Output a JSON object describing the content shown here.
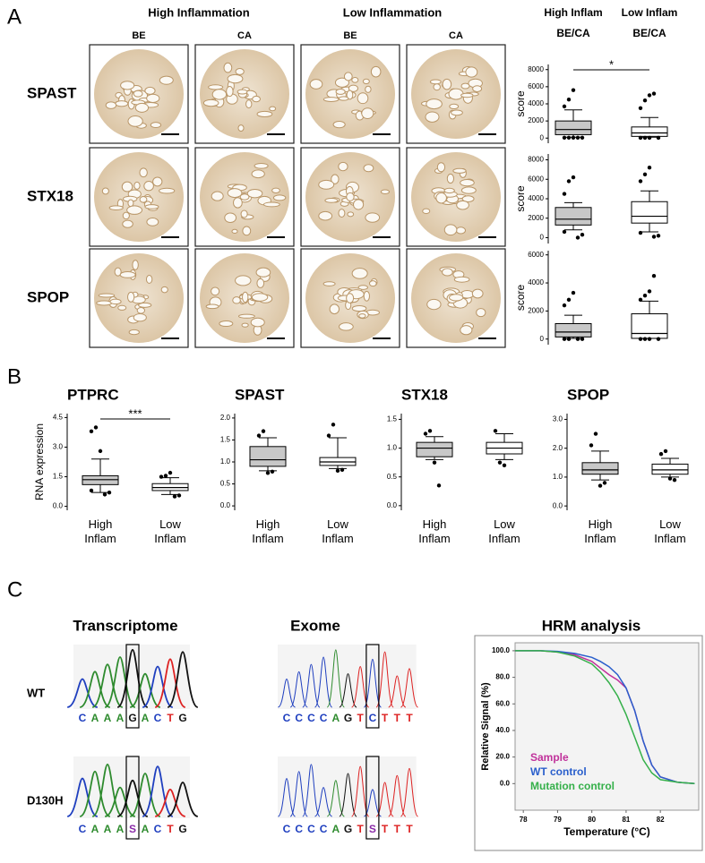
{
  "figure": {
    "panel_labels": [
      "A",
      "B",
      "C"
    ],
    "panel_a": {
      "group_headers": [
        "High Inflammation",
        "Low Inflammation"
      ],
      "column_headers": [
        "BE",
        "CA",
        "BE",
        "CA"
      ],
      "row_labels": [
        "SPAST",
        "STX18",
        "SPOP"
      ],
      "box_group_headers": [
        "High Inflam",
        "Low Inflam"
      ],
      "box_subheaders": [
        "BE/CA",
        "BE/CA"
      ]
    },
    "panel_c": {
      "titles": [
        "Transcriptome",
        "Exome"
      ],
      "row_labels": [
        "WT",
        "D130H"
      ],
      "transcriptome_sequences": [
        [
          "C",
          "A",
          "A",
          "A",
          "G",
          "A",
          "C",
          "T",
          "G"
        ],
        [
          "C",
          "A",
          "A",
          "A",
          "S",
          "A",
          "C",
          "T",
          "G"
        ]
      ],
      "exome_sequences": [
        [
          "C",
          "C",
          "C",
          "C",
          "A",
          "G",
          "T",
          "C",
          "T",
          "T",
          "T"
        ],
        [
          "C",
          "C",
          "C",
          "C",
          "A",
          "G",
          "T",
          "S",
          "T",
          "T",
          "T"
        ]
      ]
    }
  },
  "chart_data": [
    {
      "type": "box",
      "ylabel": "score",
      "ylim": [
        -600,
        8600
      ],
      "yticks": [
        0,
        2000,
        4000,
        6000,
        8000
      ],
      "colors": [
        "#c8c8c8",
        "#ffffff"
      ],
      "annotation": "*",
      "boxes": [
        {
          "whisker_low": 100,
          "q1": 400,
          "median": 1000,
          "q3": 2000,
          "whisker_high": 3300,
          "outliers": [
            3700,
            4500,
            5600,
            50,
            50,
            50,
            50,
            50
          ]
        },
        {
          "whisker_low": 100,
          "q1": 200,
          "median": 600,
          "q3": 1300,
          "whisker_high": 2400,
          "outliers": [
            3500,
            4400,
            5000,
            5200,
            30,
            30,
            30,
            30
          ]
        }
      ]
    },
    {
      "type": "box",
      "ylabel": "score",
      "ylim": [
        -600,
        8600
      ],
      "yticks": [
        0,
        2000,
        4000,
        6000,
        8000
      ],
      "colors": [
        "#c8c8c8",
        "#ffffff"
      ],
      "boxes": [
        {
          "whisker_low": 800,
          "q1": 1300,
          "median": 1900,
          "q3": 3100,
          "whisker_high": 3600,
          "outliers": [
            4500,
            5800,
            6200,
            0,
            300,
            600
          ]
        },
        {
          "whisker_low": 600,
          "q1": 1500,
          "median": 2200,
          "q3": 3700,
          "whisker_high": 4800,
          "outliers": [
            5800,
            6500,
            7200,
            100,
            200,
            500
          ]
        }
      ]
    },
    {
      "type": "box",
      "ylabel": "score",
      "ylim": [
        -400,
        6300
      ],
      "yticks": [
        0,
        2000,
        4000,
        6000
      ],
      "colors": [
        "#c8c8c8",
        "#ffffff"
      ],
      "boxes": [
        {
          "whisker_low": 50,
          "q1": 150,
          "median": 500,
          "q3": 1100,
          "whisker_high": 1700,
          "outliers": [
            2400,
            2800,
            3300,
            0,
            0,
            0,
            0
          ]
        },
        {
          "whisker_low": 50,
          "q1": 50,
          "median": 400,
          "q3": 1800,
          "whisker_high": 2700,
          "outliers": [
            2800,
            3100,
            3400,
            4500,
            0,
            0,
            0,
            0
          ]
        }
      ]
    },
    {
      "type": "box",
      "title": "PTPRC",
      "ylabel": "RNA expression",
      "categories": [
        "High Inflam",
        "Low Inflam"
      ],
      "ylim": [
        -0.2,
        4.7
      ],
      "yticks": [
        {
          "value": 0,
          "label": "0.0"
        },
        1.5,
        {
          "value": 3,
          "label": "3.0"
        },
        4.5
      ],
      "colors": [
        "#c8c8c8",
        "#ffffff"
      ],
      "annotation": "***",
      "boxes": [
        {
          "whisker_low": 0.7,
          "q1": 1.1,
          "median": 1.35,
          "q3": 1.55,
          "whisker_high": 2.4,
          "outliers": [
            3.8,
            4.0,
            2.8,
            0.6,
            0.7,
            0.8
          ]
        },
        {
          "whisker_low": 0.6,
          "q1": 0.8,
          "median": 0.95,
          "q3": 1.15,
          "whisker_high": 1.45,
          "outliers": [
            1.5,
            1.55,
            1.7,
            0.5,
            0.55
          ]
        }
      ]
    },
    {
      "type": "box",
      "title": "SPAST",
      "categories": [
        "High Inflam",
        "Low Inflam"
      ],
      "ylim": [
        -0.1,
        2.1
      ],
      "yticks": [
        {
          "value": 0,
          "label": "0.0"
        },
        0.5,
        {
          "value": 1,
          "label": "1.0"
        },
        1.5,
        {
          "value": 2,
          "label": "2.0"
        }
      ],
      "colors": [
        "#c8c8c8",
        "#ffffff"
      ],
      "boxes": [
        {
          "whisker_low": 0.8,
          "q1": 0.9,
          "median": 1.05,
          "q3": 1.35,
          "whisker_high": 1.55,
          "outliers": [
            1.6,
            1.7,
            0.75,
            0.78
          ]
        },
        {
          "whisker_low": 0.85,
          "q1": 0.92,
          "median": 1.0,
          "q3": 1.1,
          "whisker_high": 1.55,
          "outliers": [
            1.6,
            1.85,
            0.8,
            0.82
          ]
        }
      ]
    },
    {
      "type": "box",
      "title": "STX18",
      "categories": [
        "High Inflam",
        "Low Inflam"
      ],
      "ylim": [
        -0.08,
        1.6
      ],
      "yticks": [
        {
          "value": 0,
          "label": "0.0"
        },
        0.5,
        {
          "value": 1,
          "label": "1.0"
        },
        1.5
      ],
      "colors": [
        "#c8c8c8",
        "#ffffff"
      ],
      "boxes": [
        {
          "whisker_low": 0.8,
          "q1": 0.85,
          "median": 1.0,
          "q3": 1.1,
          "whisker_high": 1.2,
          "outliers": [
            1.25,
            1.3,
            0.75,
            0.35
          ]
        },
        {
          "whisker_low": 0.8,
          "q1": 0.9,
          "median": 1.0,
          "q3": 1.1,
          "whisker_high": 1.25,
          "outliers": [
            1.3,
            0.75,
            0.7
          ]
        }
      ]
    },
    {
      "type": "box",
      "title": "SPOP",
      "categories": [
        "High Inflam",
        "Low Inflam"
      ],
      "ylim": [
        -0.15,
        3.2
      ],
      "yticks": [
        {
          "value": 0,
          "label": "0.0"
        },
        {
          "value": 1,
          "label": "1.0"
        },
        {
          "value": 2,
          "label": "2.0"
        },
        {
          "value": 3,
          "label": "3.0"
        }
      ],
      "colors": [
        "#c8c8c8",
        "#ffffff"
      ],
      "boxes": [
        {
          "whisker_low": 0.9,
          "q1": 1.1,
          "median": 1.25,
          "q3": 1.5,
          "whisker_high": 1.9,
          "outliers": [
            2.1,
            2.5,
            0.7,
            0.8
          ]
        },
        {
          "whisker_low": 1.0,
          "q1": 1.1,
          "median": 1.25,
          "q3": 1.45,
          "whisker_high": 1.65,
          "outliers": [
            1.8,
            1.9,
            0.95,
            0.9
          ]
        }
      ]
    },
    {
      "type": "line",
      "title": "HRM analysis",
      "xlabel": "Temperature (°C)",
      "ylabel": "Relative Signal (%)",
      "x": [
        77.5,
        78,
        78.5,
        79,
        79.5,
        80,
        80.25,
        80.5,
        80.75,
        81,
        81.25,
        81.5,
        81.75,
        82,
        82.5,
        83
      ],
      "xlim": [
        77.76,
        83.12
      ],
      "xticks": [
        78,
        79,
        80,
        81,
        82
      ],
      "ylim": [
        -20,
        106
      ],
      "yticks": [
        {
          "value": 0,
          "label": "0.0"
        },
        {
          "value": 20,
          "label": "20.0"
        },
        {
          "value": 40,
          "label": "40.0"
        },
        {
          "value": 60,
          "label": "60.0"
        },
        {
          "value": 80,
          "label": "80.0"
        },
        {
          "value": 100,
          "label": "100.0"
        }
      ],
      "series": [
        {
          "name": "Sample",
          "color": "#c0309a",
          "values": [
            100,
            100,
            100,
            99,
            97,
            92,
            87,
            82,
            78,
            72,
            55,
            32,
            14,
            5,
            1,
            0
          ]
        },
        {
          "name": "WT control",
          "color": "#2a5fcc",
          "values": [
            100,
            100,
            100,
            99.5,
            98,
            95,
            92,
            88,
            82,
            72,
            55,
            32,
            14,
            5,
            1,
            0
          ]
        },
        {
          "name": "Mutation control",
          "color": "#35b04a",
          "values": [
            100,
            100,
            100,
            99,
            96,
            90,
            84,
            76,
            66,
            52,
            35,
            18,
            8,
            3,
            1,
            0
          ]
        }
      ]
    }
  ]
}
